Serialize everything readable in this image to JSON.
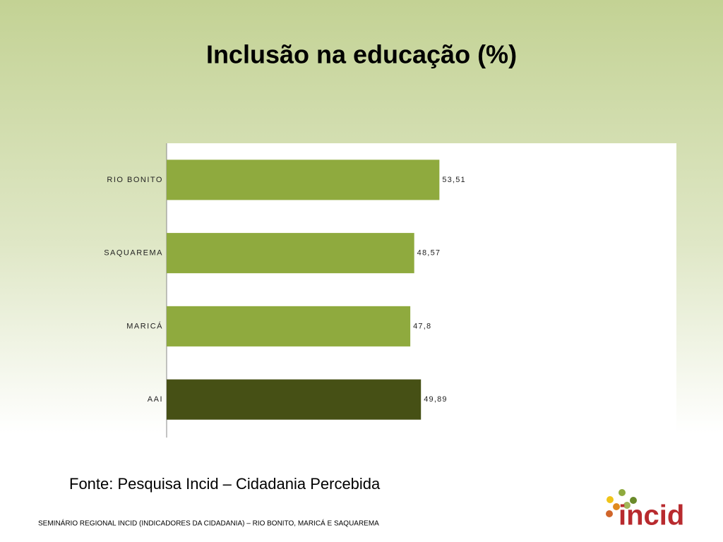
{
  "chart_data": {
    "type": "hbar",
    "title": "Inclusão na educação (%)",
    "categories": [
      "RIO BONITO",
      "SAQUAREMA",
      "MARICÁ",
      "AAI"
    ],
    "values": [
      53.51,
      48.57,
      47.8,
      49.89
    ],
    "value_labels": [
      "53,51",
      "48,57",
      "47,8",
      "49,89"
    ],
    "colors": [
      "#8faa3e",
      "#8faa3e",
      "#8faa3e",
      "#465015"
    ],
    "xlim": [
      0,
      100
    ]
  },
  "source": "Fonte: Pesquisa Incid – Cidadania Percebida",
  "footer": "SEMINÁRIO REGIONAL INCID (INDICADORES DA CIDADANIA) – RIO BONITO, MARICÁ E SAQUAREMA",
  "logo": "incid"
}
